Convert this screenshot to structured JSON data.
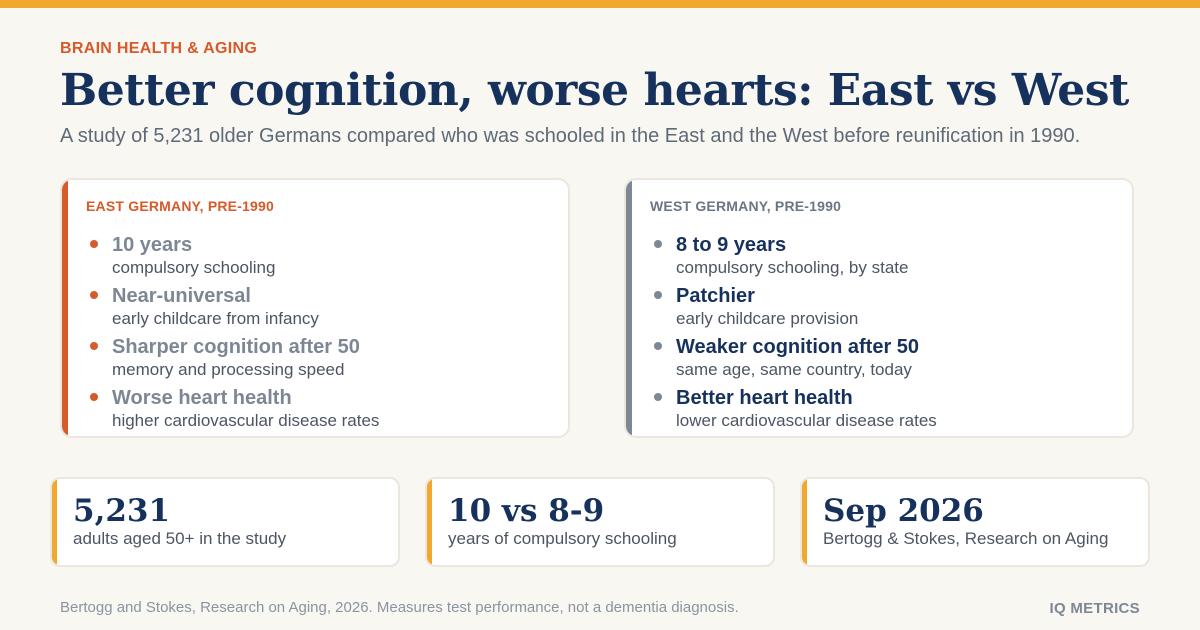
{
  "colors": {
    "accent_bar": "#f2a82f",
    "kicker": "#d65a2a",
    "title": "#16325c",
    "east_accent": "#d65a2a",
    "west_accent": "#7d8896",
    "background": "#f9f7f2"
  },
  "header": {
    "kicker": "BRAIN HEALTH & AGING",
    "title": "Better cognition, worse hearts: East vs West",
    "subtitle": "A study of 5,231 older Germans compared who was schooled in the East and the West before reunification in 1990."
  },
  "east": {
    "label": "EAST GERMANY, PRE-1990",
    "items": [
      {
        "title": "10 years",
        "sub": "compulsory schooling"
      },
      {
        "title": "Near-universal",
        "sub": "early childcare from infancy"
      },
      {
        "title": "Sharper cognition after 50",
        "sub": "memory and processing speed"
      },
      {
        "title": "Worse heart health",
        "sub": "higher cardiovascular disease rates"
      }
    ]
  },
  "west": {
    "label": "WEST GERMANY, PRE-1990",
    "items": [
      {
        "title": "8 to 9 years",
        "sub": "compulsory schooling, by state"
      },
      {
        "title": "Patchier",
        "sub": "early childcare provision"
      },
      {
        "title": "Weaker cognition after 50",
        "sub": "same age, same country, today"
      },
      {
        "title": "Better heart health",
        "sub": "lower cardiovascular disease rates"
      }
    ]
  },
  "stats": [
    {
      "value": "5,231",
      "label": "adults aged 50+ in the study"
    },
    {
      "value": "10 vs 8-9",
      "label": "years of compulsory schooling"
    },
    {
      "value": "Sep 2026",
      "label": "Bertogg & Stokes, Research on Aging"
    }
  ],
  "footer": {
    "source": "Bertogg and Stokes, Research on Aging, 2026. Measures test performance, not a dementia diagnosis.",
    "brand": "IQ METRICS"
  }
}
